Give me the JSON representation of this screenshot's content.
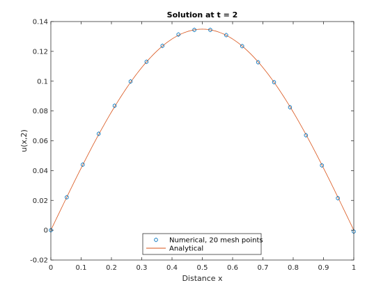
{
  "chart_data": {
    "type": "line",
    "title": "Solution at t = 2",
    "xlabel": "Distance x",
    "ylabel": "u(x,2)",
    "xlim": [
      0,
      1
    ],
    "ylim": [
      -0.02,
      0.14
    ],
    "xticks": [
      "0",
      "0.1",
      "0.2",
      "0.3",
      "0.4",
      "0.5",
      "0.6",
      "0.7",
      "0.8",
      "0.9",
      "1"
    ],
    "yticks": [
      "-0.02",
      "0",
      "0.02",
      "0.04",
      "0.06",
      "0.08",
      "0.1",
      "0.12",
      "0.14"
    ],
    "grid": false,
    "legend_position": "bottom-center",
    "series": [
      {
        "name": "Numerical, 20 mesh points",
        "style": "markers",
        "color": "#0072BD",
        "x": [
          0,
          0.0526,
          0.1053,
          0.1579,
          0.2105,
          0.2632,
          0.3158,
          0.3684,
          0.4211,
          0.4737,
          0.5263,
          0.5789,
          0.6316,
          0.6842,
          0.7368,
          0.7895,
          0.8421,
          0.8947,
          0.9474,
          1.0
        ],
        "y": [
          0,
          0.0221,
          0.044,
          0.0647,
          0.0835,
          0.0998,
          0.113,
          0.1237,
          0.1313,
          0.1344,
          0.1344,
          0.1309,
          0.1235,
          0.1127,
          0.0993,
          0.0825,
          0.0637,
          0.0435,
          0.0215,
          -0.0009
        ]
      },
      {
        "name": "Analytical",
        "style": "line",
        "color": "#D95319",
        "function": "0.1349*sin(pi*x)",
        "x": [
          0,
          0.05,
          0.1,
          0.15,
          0.2,
          0.25,
          0.3,
          0.35,
          0.4,
          0.45,
          0.5,
          0.55,
          0.6,
          0.65,
          0.7,
          0.75,
          0.8,
          0.85,
          0.9,
          0.95,
          1.0
        ],
        "y": [
          0,
          0.0211,
          0.0417,
          0.0612,
          0.0793,
          0.0954,
          0.1091,
          0.1202,
          0.1283,
          0.1332,
          0.1349,
          0.1332,
          0.1283,
          0.1202,
          0.1091,
          0.0954,
          0.0793,
          0.0612,
          0.0417,
          0.0211,
          0
        ]
      }
    ]
  }
}
